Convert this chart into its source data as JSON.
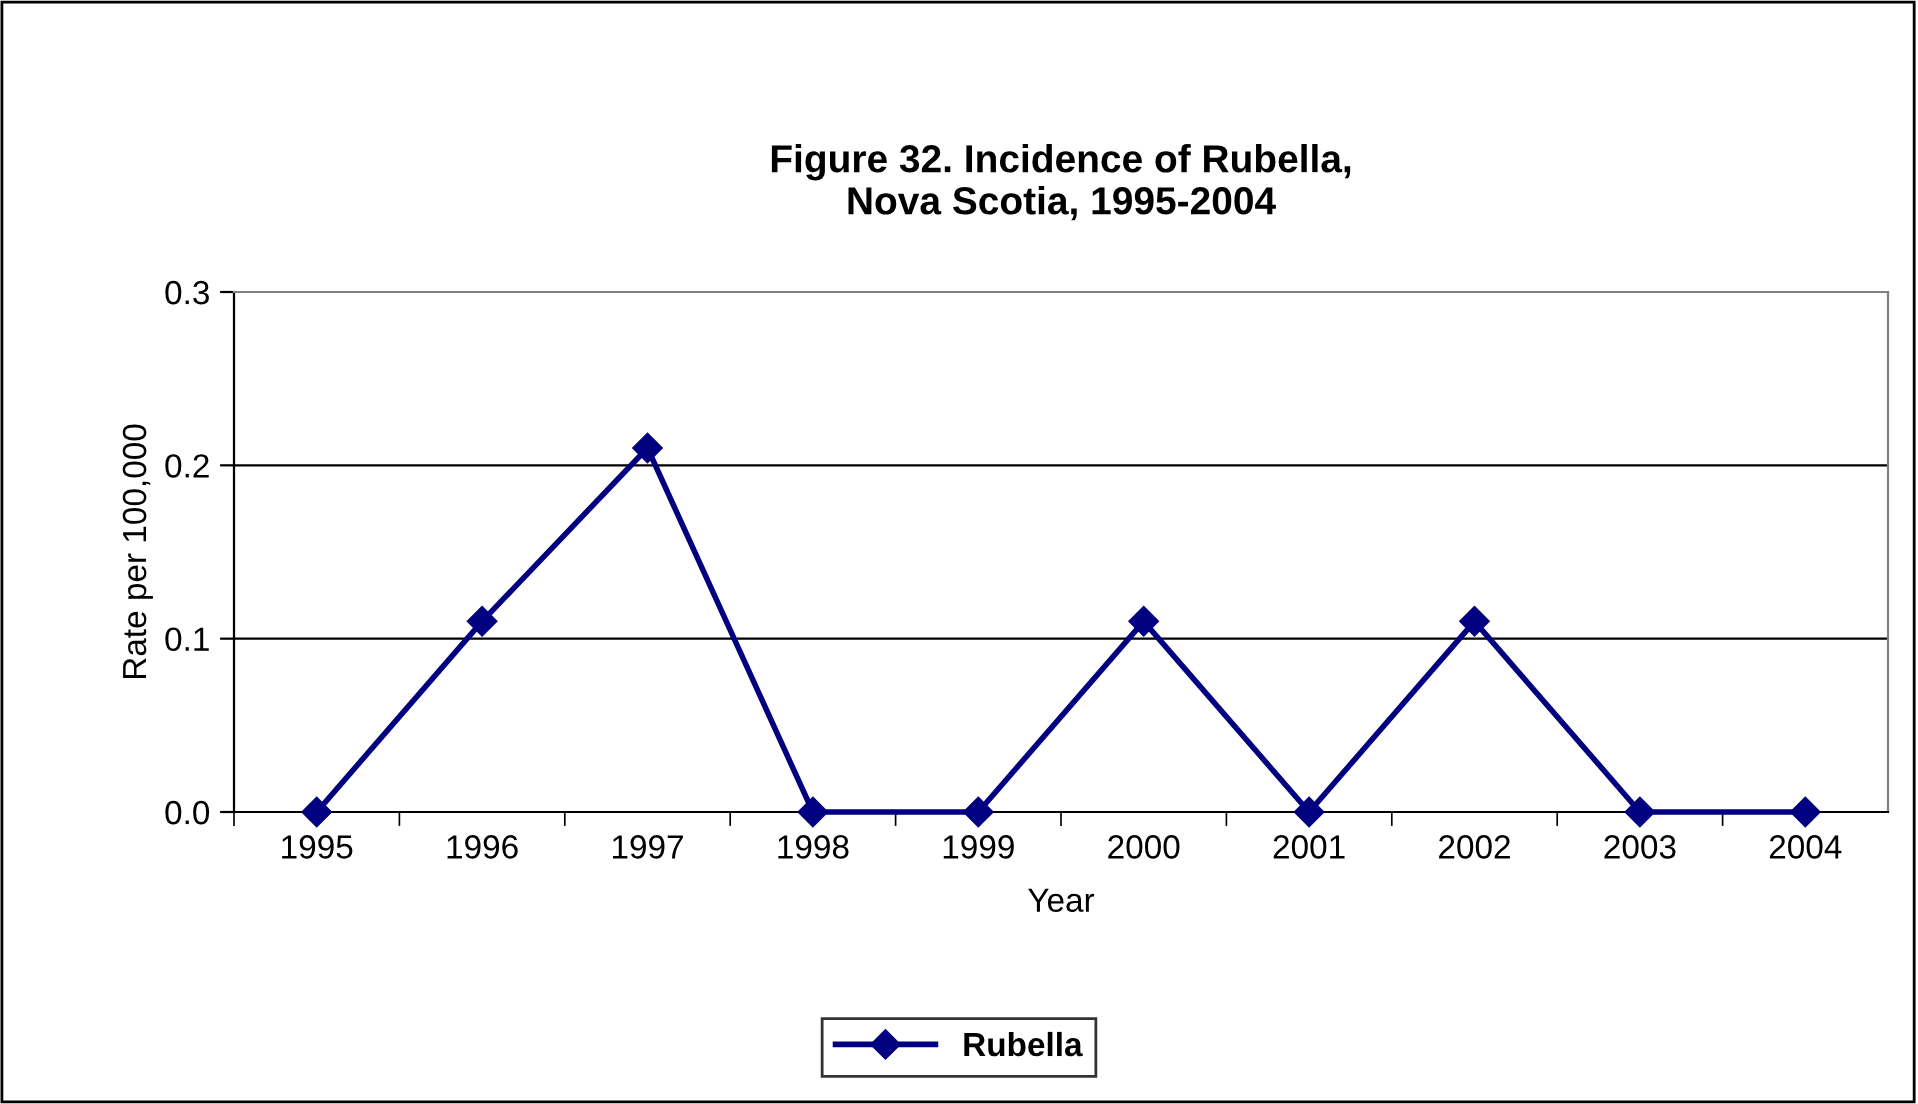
{
  "chart_data": {
    "type": "line",
    "title": "Figure 32. Incidence of Rubella,\nNova Scotia, 1995-2004",
    "xlabel": "Year",
    "ylabel": "Rate per 100,000",
    "categories": [
      "1995",
      "1996",
      "1997",
      "1998",
      "1999",
      "2000",
      "2001",
      "2002",
      "2003",
      "2004"
    ],
    "series": [
      {
        "name": "Rubella",
        "color": "#000080",
        "values": [
          0,
          0.11,
          0.21,
          0,
          0,
          0.11,
          0,
          0.11,
          0,
          0
        ]
      }
    ],
    "ylim": [
      0,
      0.3
    ],
    "yticks": [
      {
        "value": 0,
        "label": "0.0"
      },
      0.1,
      0.2,
      0.3
    ],
    "grid": "y",
    "legend": "bottom",
    "marker": "diamond",
    "line_style": "solid"
  }
}
